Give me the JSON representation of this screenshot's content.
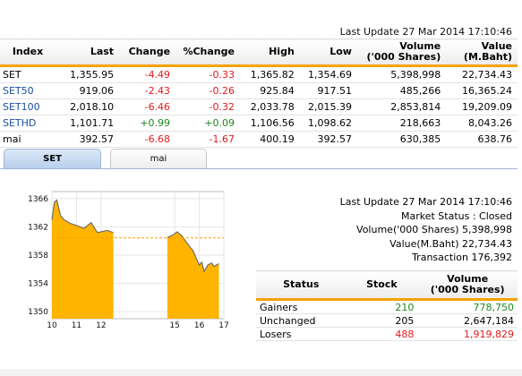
{
  "market": {
    "last_update": "Last Update 27 Mar 2014 17:10:46",
    "columns": [
      "Index",
      "Last",
      "Change",
      "%Change",
      "High",
      "Low",
      "Volume\n('000 Shares)",
      "Value\n(M.Baht)"
    ],
    "rows": [
      {
        "index": "SET",
        "last": "1,355.95",
        "change": "-4.49",
        "pct": "-0.33",
        "high": "1,365.82",
        "low": "1,354.69",
        "volume": "5,398,998",
        "value": "22,734.43",
        "link": false,
        "dir": "neg"
      },
      {
        "index": "SET50",
        "last": "919.06",
        "change": "-2.43",
        "pct": "-0.26",
        "high": "925.84",
        "low": "917.51",
        "volume": "485,266",
        "value": "16,365.24",
        "link": true,
        "dir": "neg"
      },
      {
        "index": "SET100",
        "last": "2,018.10",
        "change": "-6.46",
        "pct": "-0.32",
        "high": "2,033.78",
        "low": "2,015.39",
        "volume": "2,853,814",
        "value": "19,209.09",
        "link": true,
        "dir": "neg"
      },
      {
        "index": "SETHD",
        "last": "1,101.71",
        "change": "+0.99",
        "pct": "+0.09",
        "high": "1,106.56",
        "low": "1,098.62",
        "volume": "218,663",
        "value": "8,043.26",
        "link": true,
        "dir": "pos"
      },
      {
        "index": "mai",
        "last": "392.57",
        "change": "-6.68",
        "pct": "-1.67",
        "high": "400.19",
        "low": "392.57",
        "volume": "630,385",
        "value": "638.76",
        "link": false,
        "dir": "neg"
      }
    ]
  },
  "tabs": [
    {
      "label": "SET",
      "active": true
    },
    {
      "label": "mai",
      "active": false
    }
  ],
  "status": {
    "last_update": "Last Update 27 Mar 2014 17:10:46",
    "market_status": "Market Status : Closed",
    "volume": "Volume('000 Shares) 5,398,998",
    "value": "Value(M.Baht) 22,734.43",
    "transaction": "Transaction 176,392",
    "columns": [
      "Status",
      "Stock",
      "Volume\n('000 Shares)"
    ],
    "rows": [
      {
        "status": "Gainers",
        "stock": "210",
        "volume": "778,750",
        "color": "green"
      },
      {
        "status": "Unchanged",
        "stock": "205",
        "volume": "2,647,184",
        "color": "black"
      },
      {
        "status": "Losers",
        "stock": "488",
        "volume": "1,919,829",
        "color": "red"
      }
    ]
  },
  "chart_data": {
    "type": "area",
    "title": "",
    "xlabel": "",
    "ylabel": "",
    "x_ticks": [
      "10",
      "11",
      "12",
      "15",
      "16",
      "17"
    ],
    "y_ticks": [
      "1350",
      "1354",
      "1358",
      "1362",
      "1366"
    ],
    "ylim": [
      1349,
      1367
    ],
    "xlim": [
      10,
      17
    ],
    "prev_close": 1360.44,
    "fill_color": "#ffb400",
    "series": [
      {
        "x": [
          10.0,
          10.1,
          10.2,
          10.35,
          10.5,
          10.75,
          11.0,
          11.3,
          11.6,
          11.85,
          12.0,
          12.25,
          12.5
        ],
        "y": [
          1363.0,
          1365.5,
          1365.8,
          1363.6,
          1363.0,
          1362.5,
          1362.2,
          1361.8,
          1362.6,
          1361.2,
          1361.3,
          1361.5,
          1361.2
        ]
      },
      {
        "x": [
          14.7,
          14.9,
          15.1,
          15.3,
          15.5,
          15.75,
          16.0,
          16.1,
          16.2,
          16.35,
          16.5,
          16.6,
          16.8
        ],
        "y": [
          1360.5,
          1360.8,
          1361.3,
          1360.7,
          1359.7,
          1358.6,
          1356.6,
          1357.0,
          1355.7,
          1356.6,
          1356.9,
          1356.4,
          1356.8
        ]
      }
    ],
    "grid": true
  }
}
